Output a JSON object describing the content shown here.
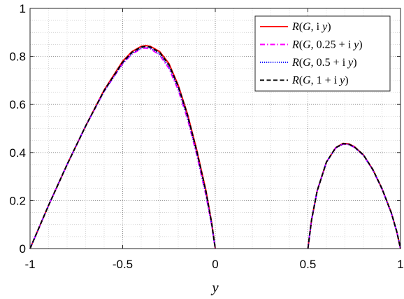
{
  "chart_data": {
    "type": "line",
    "title": "",
    "xlabel": "y",
    "ylabel": "",
    "xlim": [
      -1,
      1
    ],
    "ylim": [
      0,
      1
    ],
    "xticks": [
      -1,
      -0.5,
      0,
      0.5,
      1
    ],
    "xtick_labels": [
      "-1",
      "-0.5",
      "0",
      "0.5",
      "1"
    ],
    "yticks": [
      0,
      0.2,
      0.4,
      0.6,
      0.8,
      1
    ],
    "ytick_labels": [
      "0",
      "0.2",
      "0.4",
      "0.6",
      "0.8",
      "1"
    ],
    "grid": "major and minor, dotted",
    "legend_position": "top-right",
    "series": [
      {
        "name": "R(G, i y)",
        "color": "#ff0000",
        "dash": "solid",
        "segments": [
          {
            "x": [
              -1,
              -0.9,
              -0.8,
              -0.7,
              -0.6,
              -0.5,
              -0.45,
              -0.4,
              -0.375,
              -0.35,
              -0.3,
              -0.25,
              -0.2,
              -0.15,
              -0.1,
              -0.05,
              -0.02,
              0
            ],
            "y": [
              0.0,
              0.18,
              0.35,
              0.51,
              0.66,
              0.78,
              0.82,
              0.842,
              0.845,
              0.842,
              0.82,
              0.77,
              0.68,
              0.56,
              0.41,
              0.24,
              0.11,
              0.0
            ]
          },
          {
            "x": [
              0.5,
              0.52,
              0.55,
              0.6,
              0.65,
              0.69,
              0.72,
              0.75,
              0.8,
              0.85,
              0.9,
              0.95,
              0.98,
              1.0
            ],
            "y": [
              0.0,
              0.12,
              0.24,
              0.36,
              0.42,
              0.438,
              0.436,
              0.425,
              0.39,
              0.33,
              0.25,
              0.15,
              0.07,
              0.0
            ]
          }
        ]
      },
      {
        "name": "R(G, 0.25 + i y)",
        "color": "#ff00ff",
        "dash": "dashdot",
        "segments": [
          {
            "x": [
              -1,
              -0.9,
              -0.8,
              -0.7,
              -0.6,
              -0.5,
              -0.45,
              -0.4,
              -0.38,
              -0.35,
              -0.3,
              -0.25,
              -0.2,
              -0.15,
              -0.1,
              -0.05,
              -0.02,
              0
            ],
            "y": [
              0.0,
              0.18,
              0.35,
              0.51,
              0.655,
              0.77,
              0.81,
              0.832,
              0.835,
              0.832,
              0.805,
              0.75,
              0.66,
              0.54,
              0.39,
              0.22,
              0.1,
              0.0
            ]
          },
          {
            "x": [
              0.5,
              0.52,
              0.55,
              0.6,
              0.65,
              0.69,
              0.72,
              0.75,
              0.8,
              0.85,
              0.9,
              0.95,
              0.98,
              1.0
            ],
            "y": [
              0.0,
              0.12,
              0.24,
              0.36,
              0.418,
              0.435,
              0.433,
              0.422,
              0.388,
              0.328,
              0.248,
              0.148,
              0.07,
              0.0
            ]
          }
        ]
      },
      {
        "name": "R(G, 0.5 + i y)",
        "color": "#0000ff",
        "dash": "dotted",
        "segments": [
          {
            "x": [
              -1,
              -0.9,
              -0.8,
              -0.7,
              -0.6,
              -0.5,
              -0.45,
              -0.4,
              -0.38,
              -0.35,
              -0.3,
              -0.25,
              -0.2,
              -0.15,
              -0.1,
              -0.05,
              -0.02,
              0
            ],
            "y": [
              0.0,
              0.18,
              0.35,
              0.51,
              0.655,
              0.772,
              0.812,
              0.835,
              0.838,
              0.835,
              0.81,
              0.757,
              0.668,
              0.548,
              0.398,
              0.228,
              0.104,
              0.0
            ]
          },
          {
            "x": [
              0.5,
              0.52,
              0.55,
              0.6,
              0.65,
              0.69,
              0.72,
              0.75,
              0.8,
              0.85,
              0.9,
              0.95,
              0.98,
              1.0
            ],
            "y": [
              0.0,
              0.12,
              0.24,
              0.36,
              0.419,
              0.436,
              0.434,
              0.423,
              0.389,
              0.329,
              0.249,
              0.149,
              0.07,
              0.0
            ]
          }
        ]
      },
      {
        "name": "R(G, 1 + i y)",
        "color": "#000000",
        "dash": "dashed",
        "segments": [
          {
            "x": [
              -1,
              -0.9,
              -0.8,
              -0.7,
              -0.6,
              -0.5,
              -0.45,
              -0.4,
              -0.375,
              -0.35,
              -0.3,
              -0.25,
              -0.2,
              -0.15,
              -0.1,
              -0.05,
              -0.02,
              0
            ],
            "y": [
              0.0,
              0.18,
              0.35,
              0.51,
              0.658,
              0.776,
              0.817,
              0.839,
              0.842,
              0.839,
              0.816,
              0.765,
              0.676,
              0.556,
              0.406,
              0.236,
              0.108,
              0.0
            ]
          },
          {
            "x": [
              0.5,
              0.52,
              0.55,
              0.6,
              0.65,
              0.69,
              0.72,
              0.75,
              0.8,
              0.85,
              0.9,
              0.95,
              0.98,
              1.0
            ],
            "y": [
              0.0,
              0.12,
              0.24,
              0.36,
              0.42,
              0.437,
              0.435,
              0.424,
              0.39,
              0.33,
              0.25,
              0.15,
              0.07,
              0.0
            ]
          }
        ]
      }
    ],
    "legend": [
      {
        "pre": "R",
        "arg1": "G",
        "sep": ", ",
        "offset": "",
        "unit": "i",
        "var": "y"
      },
      {
        "pre": "R",
        "arg1": "G",
        "sep": ", ",
        "offset": "0.25 + ",
        "unit": "i",
        "var": "y"
      },
      {
        "pre": "R",
        "arg1": "G",
        "sep": ", ",
        "offset": "0.5 + ",
        "unit": "i",
        "var": "y"
      },
      {
        "pre": "R",
        "arg1": "G",
        "sep": ", ",
        "offset": "1 + ",
        "unit": "i",
        "var": "y"
      }
    ]
  }
}
